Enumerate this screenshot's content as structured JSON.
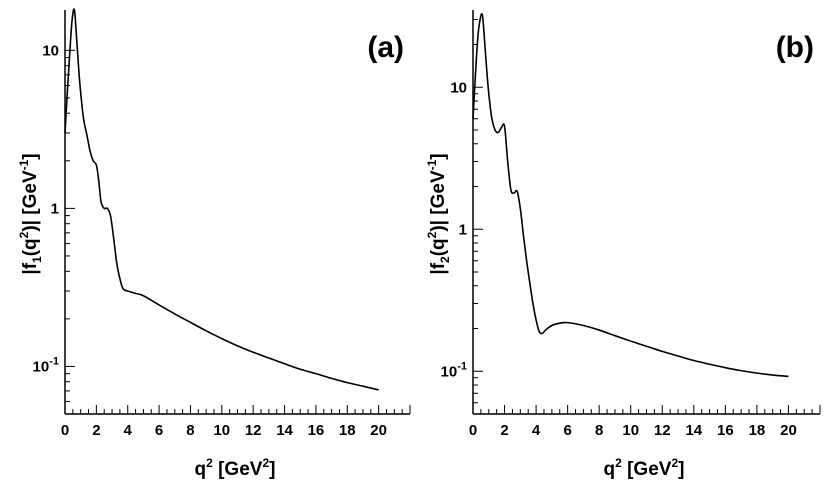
{
  "chart_data": [
    {
      "type": "line",
      "panel_label": "(a)",
      "xlabel": {
        "base": "q",
        "sup": "2",
        "unit_open": " [GeV",
        "unit_sup": "2",
        "unit_close": "]"
      },
      "ylabel": {
        "bar_left": "|",
        "f": "f",
        "f_sub": "1",
        "paren_q": "(q",
        "q_sup": "2",
        "paren_close": ")",
        "bar_right": "|",
        "unit_open": " [GeV",
        "unit_sup": "-1",
        "unit_close": "]"
      },
      "xlim": [
        0,
        22
      ],
      "ylim": [
        0.05,
        18
      ],
      "y_scale": "log",
      "x_ticks": [
        "0",
        "2",
        "4",
        "6",
        "8",
        "10",
        "12",
        "14",
        "16",
        "18",
        "20"
      ],
      "y_ticks": [
        {
          "value": 10,
          "text": "10"
        },
        {
          "value": 1,
          "text": "1"
        },
        {
          "value": 0.1,
          "base": "10",
          "exp": "-1"
        }
      ],
      "series": [
        {
          "x": [
            0.0,
            0.15,
            0.3,
            0.45,
            0.6,
            0.75,
            0.9,
            1.05,
            1.2,
            1.4,
            1.6,
            1.8,
            2.0,
            2.15,
            2.3,
            2.5,
            2.7,
            2.9,
            3.1,
            3.3,
            3.5,
            3.7,
            4.0,
            4.5,
            5.0,
            6.0,
            7.0,
            8.0,
            9.0,
            10.0,
            11.0,
            12.0,
            13.0,
            14.0,
            15.0,
            16.0,
            17.0,
            18.0,
            19.0,
            20.0
          ],
          "y": [
            3.0,
            5.5,
            9.5,
            15.5,
            18.0,
            11.5,
            7.0,
            4.8,
            3.6,
            2.9,
            2.3,
            2.0,
            1.88,
            1.5,
            1.1,
            1.0,
            1.0,
            0.9,
            0.65,
            0.45,
            0.36,
            0.31,
            0.3,
            0.29,
            0.28,
            0.245,
            0.215,
            0.19,
            0.168,
            0.15,
            0.135,
            0.123,
            0.113,
            0.104,
            0.096,
            0.09,
            0.084,
            0.079,
            0.075,
            0.071
          ]
        }
      ]
    },
    {
      "type": "line",
      "panel_label": "(b)",
      "xlabel": {
        "base": "q",
        "sup": "2",
        "unit_open": " [GeV",
        "unit_sup": "2",
        "unit_close": "]"
      },
      "ylabel": {
        "bar_left": "|",
        "f": "f",
        "f_sub": "2",
        "paren_q": "(q",
        "q_sup": "2",
        "paren_close": ")",
        "bar_right": "|",
        "unit_open": " [GeV",
        "unit_sup": "-1",
        "unit_close": "]"
      },
      "xlim": [
        0,
        22
      ],
      "ylim": [
        0.05,
        35
      ],
      "y_scale": "log",
      "x_ticks": [
        "0",
        "2",
        "4",
        "6",
        "8",
        "10",
        "12",
        "14",
        "16",
        "18",
        "20"
      ],
      "y_ticks": [
        {
          "value": 10,
          "text": "10"
        },
        {
          "value": 1,
          "text": "1"
        },
        {
          "value": 0.1,
          "base": "10",
          "exp": "-1"
        }
      ],
      "series": [
        {
          "x": [
            0.0,
            0.15,
            0.3,
            0.45,
            0.6,
            0.75,
            0.9,
            1.05,
            1.2,
            1.4,
            1.6,
            1.8,
            2.0,
            2.2,
            2.4,
            2.6,
            2.8,
            3.0,
            3.2,
            3.4,
            3.6,
            3.8,
            4.0,
            4.2,
            4.4,
            4.6,
            5.0,
            5.5,
            6.0,
            7.0,
            8.0,
            9.0,
            10.0,
            11.0,
            12.0,
            13.0,
            14.0,
            15.0,
            16.0,
            17.0,
            18.0,
            19.0,
            20.0
          ],
          "y": [
            6.0,
            12.0,
            22.0,
            30.0,
            32.0,
            20.0,
            12.0,
            8.0,
            6.0,
            5.0,
            4.8,
            5.2,
            5.3,
            3.0,
            1.9,
            1.8,
            1.85,
            1.4,
            0.9,
            0.6,
            0.42,
            0.3,
            0.23,
            0.19,
            0.185,
            0.195,
            0.21,
            0.218,
            0.22,
            0.21,
            0.195,
            0.178,
            0.163,
            0.15,
            0.138,
            0.128,
            0.119,
            0.112,
            0.106,
            0.101,
            0.097,
            0.094,
            0.092
          ]
        }
      ]
    }
  ]
}
